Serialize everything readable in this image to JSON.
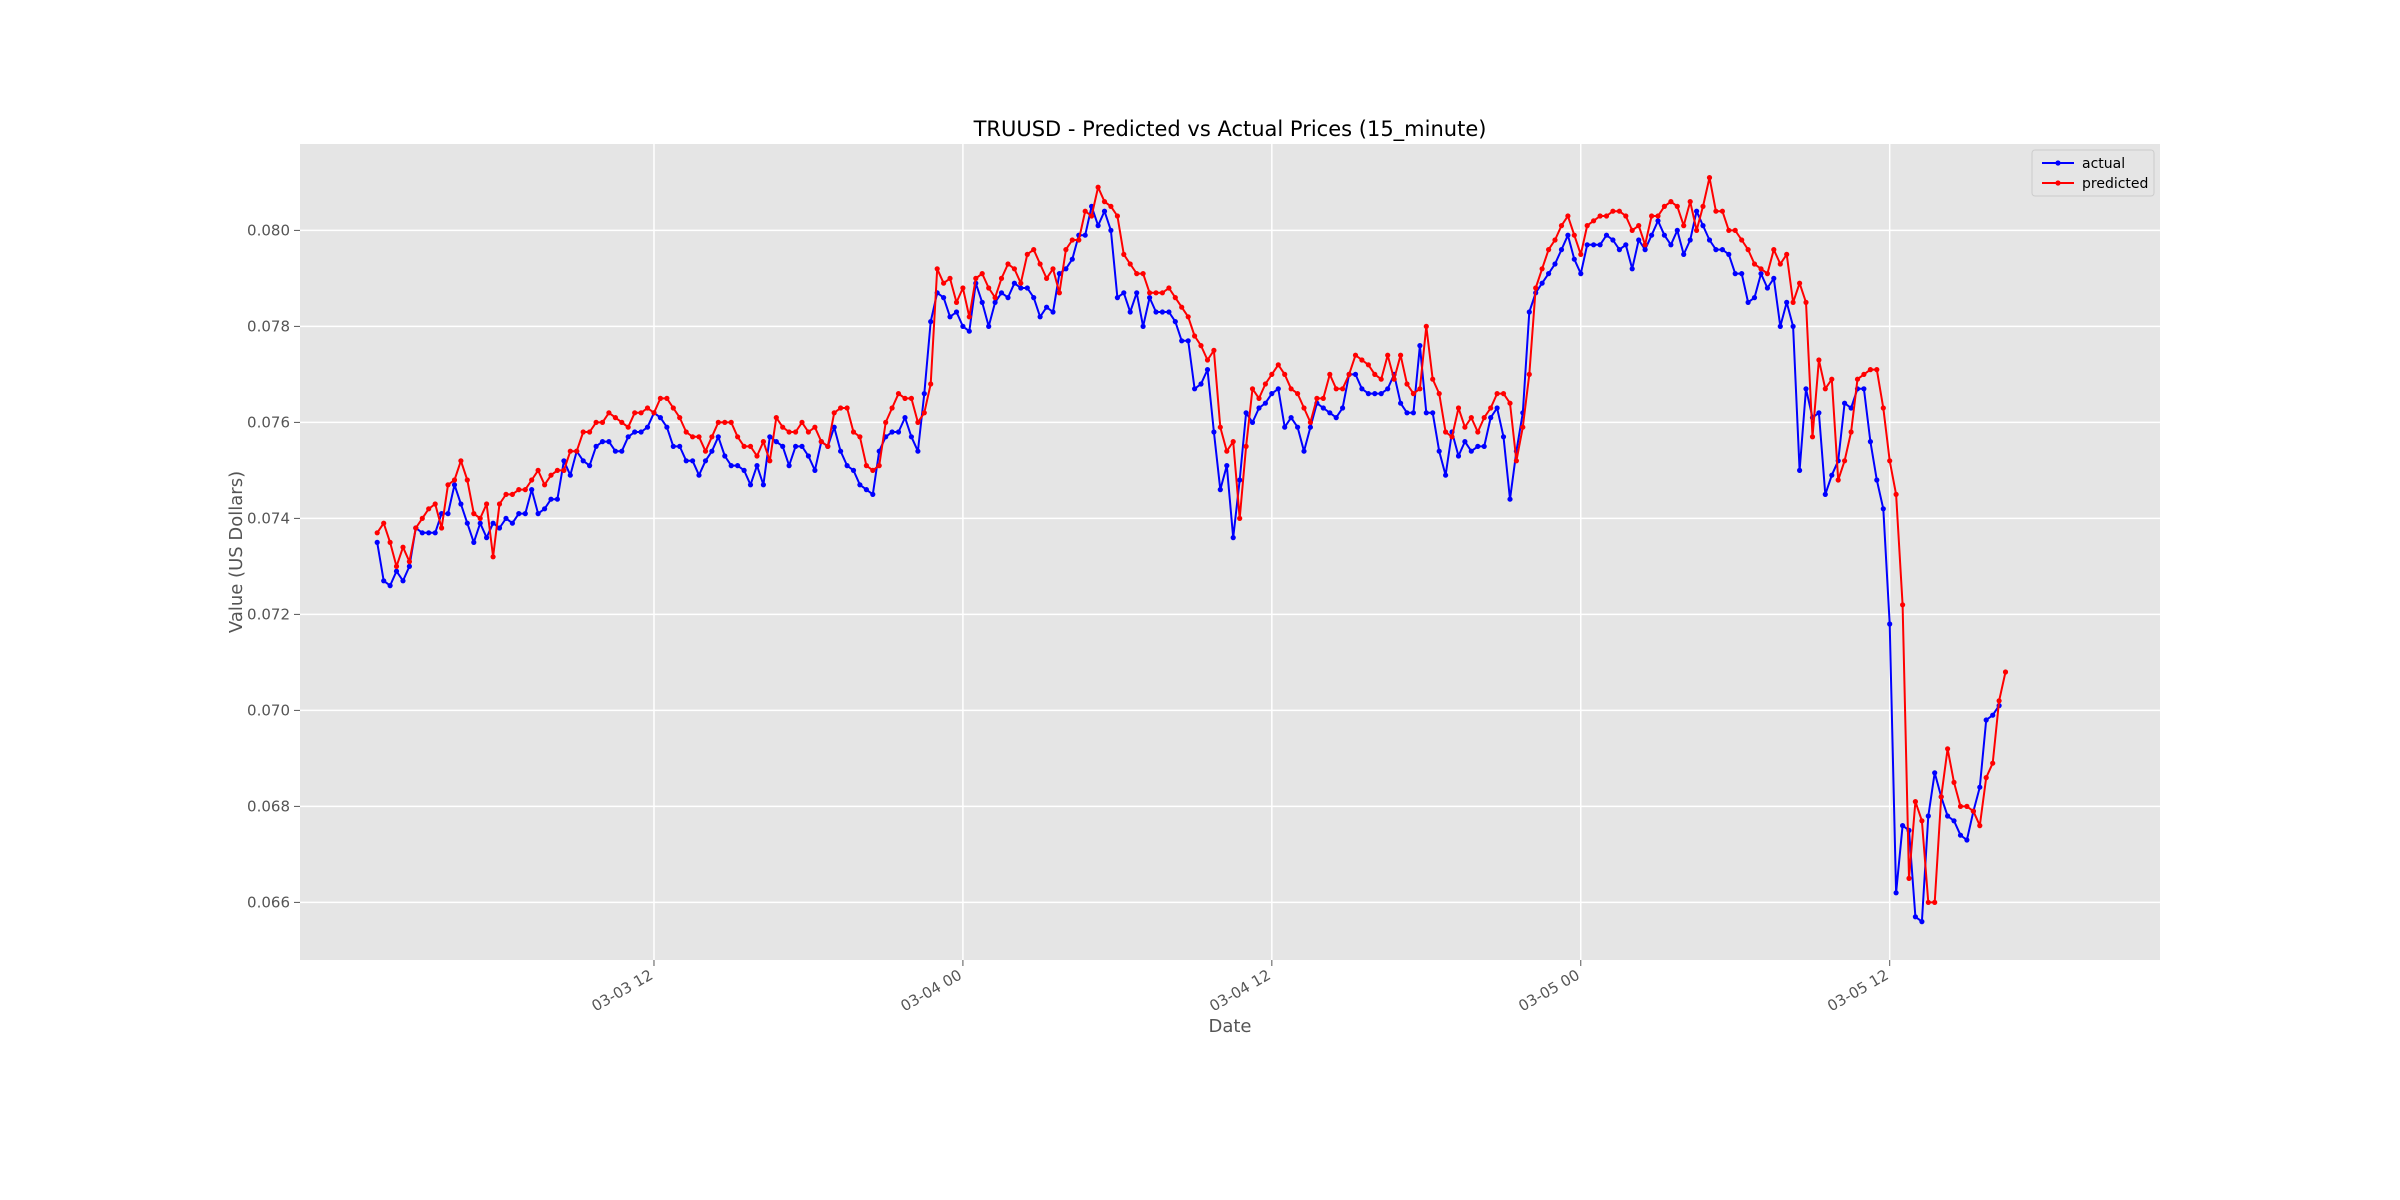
{
  "chart_data": {
    "type": "line",
    "title": "TRUUSD - Predicted vs Actual Prices (15_minute)",
    "xlabel": "Date",
    "ylabel": "Value (US Dollars)",
    "x_start": "2025-03-03T01:15",
    "x_step_minutes": 15,
    "xlim": [
      "2025-03-02T22:15",
      "2025-03-05T22:30"
    ],
    "ylim": [
      0.0648,
      0.0818
    ],
    "x_ticks": [
      {
        "value": "2025-03-03T12:00",
        "label": "03-03 12"
      },
      {
        "value": "2025-03-04T00:00",
        "label": "03-04 00"
      },
      {
        "value": "2025-03-04T12:00",
        "label": "03-04 12"
      },
      {
        "value": "2025-03-05T00:00",
        "label": "03-05 00"
      },
      {
        "value": "2025-03-05T12:00",
        "label": "03-05 12"
      }
    ],
    "y_ticks": [
      "0.066",
      "0.068",
      "0.070",
      "0.072",
      "0.074",
      "0.076",
      "0.078",
      "0.080"
    ],
    "grid": true,
    "legend": "top-right",
    "series": [
      {
        "name": "actual",
        "color": "#0000ff",
        "values": [
          0.0735,
          0.0727,
          0.0726,
          0.0729,
          0.0727,
          0.073,
          0.0738,
          0.0737,
          0.0737,
          0.0737,
          0.0741,
          0.0741,
          0.0747,
          0.0743,
          0.0739,
          0.0735,
          0.0739,
          0.0736,
          0.0739,
          0.0738,
          0.074,
          0.0739,
          0.0741,
          0.0741,
          0.0746,
          0.0741,
          0.0742,
          0.0744,
          0.0744,
          0.0752,
          0.0749,
          0.0754,
          0.0752,
          0.0751,
          0.0755,
          0.0756,
          0.0756,
          0.0754,
          0.0754,
          0.0757,
          0.0758,
          0.0758,
          0.0759,
          0.0762,
          0.0761,
          0.0759,
          0.0755,
          0.0755,
          0.0752,
          0.0752,
          0.0749,
          0.0752,
          0.0754,
          0.0757,
          0.0753,
          0.0751,
          0.0751,
          0.075,
          0.0747,
          0.0751,
          0.0747,
          0.0757,
          0.0756,
          0.0755,
          0.0751,
          0.0755,
          0.0755,
          0.0753,
          0.075,
          0.0756,
          0.0755,
          0.0759,
          0.0754,
          0.0751,
          0.075,
          0.0747,
          0.0746,
          0.0745,
          0.0754,
          0.0757,
          0.0758,
          0.0758,
          0.0761,
          0.0757,
          0.0754,
          0.0766,
          0.0781,
          0.0787,
          0.0786,
          0.0782,
          0.0783,
          0.078,
          0.0779,
          0.0789,
          0.0785,
          0.078,
          0.0785,
          0.0787,
          0.0786,
          0.0789,
          0.0788,
          0.0788,
          0.0786,
          0.0782,
          0.0784,
          0.0783,
          0.0791,
          0.0792,
          0.0794,
          0.0799,
          0.0799,
          0.0805,
          0.0801,
          0.0804,
          0.08,
          0.0786,
          0.0787,
          0.0783,
          0.0787,
          0.078,
          0.0786,
          0.0783,
          0.0783,
          0.0783,
          0.0781,
          0.0777,
          0.0777,
          0.0767,
          0.0768,
          0.0771,
          0.0758,
          0.0746,
          0.0751,
          0.0736,
          0.0748,
          0.0762,
          0.076,
          0.0763,
          0.0764,
          0.0766,
          0.0767,
          0.0759,
          0.0761,
          0.0759,
          0.0754,
          0.0759,
          0.0764,
          0.0763,
          0.0762,
          0.0761,
          0.0763,
          0.077,
          0.077,
          0.0767,
          0.0766,
          0.0766,
          0.0766,
          0.0767,
          0.077,
          0.0764,
          0.0762,
          0.0762,
          0.0776,
          0.0762,
          0.0762,
          0.0754,
          0.0749,
          0.0758,
          0.0753,
          0.0756,
          0.0754,
          0.0755,
          0.0755,
          0.0761,
          0.0763,
          0.0757,
          0.0744,
          0.0754,
          0.0762,
          0.0783,
          0.0787,
          0.0789,
          0.0791,
          0.0793,
          0.0796,
          0.0799,
          0.0794,
          0.0791,
          0.0797,
          0.0797,
          0.0797,
          0.0799,
          0.0798,
          0.0796,
          0.0797,
          0.0792,
          0.0798,
          0.0796,
          0.0799,
          0.0802,
          0.0799,
          0.0797,
          0.08,
          0.0795,
          0.0798,
          0.0804,
          0.0801,
          0.0798,
          0.0796,
          0.0796,
          0.0795,
          0.0791,
          0.0791,
          0.0785,
          0.0786,
          0.0791,
          0.0788,
          0.079,
          0.078,
          0.0785,
          0.078,
          0.075,
          0.0767,
          0.0761,
          0.0762,
          0.0745,
          0.0749,
          0.0752,
          0.0764,
          0.0763,
          0.0767,
          0.0767,
          0.0756,
          0.0748,
          0.0742,
          0.0718,
          0.0662,
          0.0676,
          0.0675,
          0.0657,
          0.0656,
          0.0678,
          0.0687,
          0.0682,
          0.0678,
          0.0677,
          0.0674,
          0.0673,
          0.0679,
          0.0684,
          0.0698,
          0.0699,
          0.0701
        ]
      },
      {
        "name": "predicted",
        "color": "#ff0000",
        "values": [
          0.0737,
          0.0739,
          0.0735,
          0.073,
          0.0734,
          0.0731,
          0.0738,
          0.074,
          0.0742,
          0.0743,
          0.0738,
          0.0747,
          0.0748,
          0.0752,
          0.0748,
          0.0741,
          0.074,
          0.0743,
          0.0732,
          0.0743,
          0.0745,
          0.0745,
          0.0746,
          0.0746,
          0.0748,
          0.075,
          0.0747,
          0.0749,
          0.075,
          0.075,
          0.0754,
          0.0754,
          0.0758,
          0.0758,
          0.076,
          0.076,
          0.0762,
          0.0761,
          0.076,
          0.0759,
          0.0762,
          0.0762,
          0.0763,
          0.0762,
          0.0765,
          0.0765,
          0.0763,
          0.0761,
          0.0758,
          0.0757,
          0.0757,
          0.0754,
          0.0757,
          0.076,
          0.076,
          0.076,
          0.0757,
          0.0755,
          0.0755,
          0.0753,
          0.0756,
          0.0752,
          0.0761,
          0.0759,
          0.0758,
          0.0758,
          0.076,
          0.0758,
          0.0759,
          0.0756,
          0.0755,
          0.0762,
          0.0763,
          0.0763,
          0.0758,
          0.0757,
          0.0751,
          0.075,
          0.0751,
          0.076,
          0.0763,
          0.0766,
          0.0765,
          0.0765,
          0.076,
          0.0762,
          0.0768,
          0.0792,
          0.0789,
          0.079,
          0.0785,
          0.0788,
          0.0782,
          0.079,
          0.0791,
          0.0788,
          0.0786,
          0.079,
          0.0793,
          0.0792,
          0.0789,
          0.0795,
          0.0796,
          0.0793,
          0.079,
          0.0792,
          0.0787,
          0.0796,
          0.0798,
          0.0798,
          0.0804,
          0.0803,
          0.0809,
          0.0806,
          0.0805,
          0.0803,
          0.0795,
          0.0793,
          0.0791,
          0.0791,
          0.0787,
          0.0787,
          0.0787,
          0.0788,
          0.0786,
          0.0784,
          0.0782,
          0.0778,
          0.0776,
          0.0773,
          0.0775,
          0.0759,
          0.0754,
          0.0756,
          0.074,
          0.0755,
          0.0767,
          0.0765,
          0.0768,
          0.077,
          0.0772,
          0.077,
          0.0767,
          0.0766,
          0.0763,
          0.076,
          0.0765,
          0.0765,
          0.077,
          0.0767,
          0.0767,
          0.077,
          0.0774,
          0.0773,
          0.0772,
          0.077,
          0.0769,
          0.0774,
          0.0769,
          0.0774,
          0.0768,
          0.0766,
          0.0767,
          0.078,
          0.0769,
          0.0766,
          0.0758,
          0.0757,
          0.0763,
          0.0759,
          0.0761,
          0.0758,
          0.0761,
          0.0763,
          0.0766,
          0.0766,
          0.0764,
          0.0752,
          0.0759,
          0.077,
          0.0788,
          0.0792,
          0.0796,
          0.0798,
          0.0801,
          0.0803,
          0.0799,
          0.0795,
          0.0801,
          0.0802,
          0.0803,
          0.0803,
          0.0804,
          0.0804,
          0.0803,
          0.08,
          0.0801,
          0.0797,
          0.0803,
          0.0803,
          0.0805,
          0.0806,
          0.0805,
          0.0801,
          0.0806,
          0.08,
          0.0805,
          0.0811,
          0.0804,
          0.0804,
          0.08,
          0.08,
          0.0798,
          0.0796,
          0.0793,
          0.0792,
          0.0791,
          0.0796,
          0.0793,
          0.0795,
          0.0785,
          0.0789,
          0.0785,
          0.0757,
          0.0773,
          0.0767,
          0.0769,
          0.0748,
          0.0752,
          0.0758,
          0.0769,
          0.077,
          0.0771,
          0.0771,
          0.0763,
          0.0752,
          0.0745,
          0.0722,
          0.0665,
          0.0681,
          0.0677,
          0.066,
          0.066,
          0.0682,
          0.0692,
          0.0685,
          0.068,
          0.068,
          0.0679,
          0.0676,
          0.0686,
          0.0689,
          0.0702,
          0.0708
        ]
      }
    ]
  }
}
